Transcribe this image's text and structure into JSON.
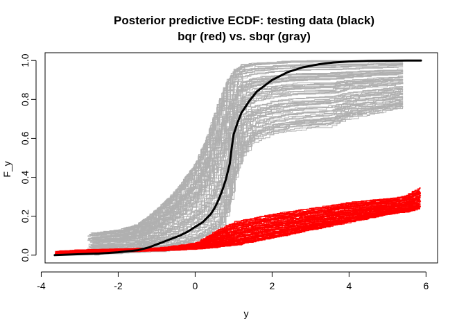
{
  "chart_data": {
    "type": "line",
    "title_line1": "Posterior predictive ECDF: testing data (black)",
    "title_line2": "bqr (red) vs. sbqr (gray)",
    "xlabel": "y",
    "ylabel": "F_y",
    "xlim": [
      -3.9,
      6.3
    ],
    "ylim": [
      -0.04,
      1.04
    ],
    "xticks": [
      -4,
      -2,
      0,
      2,
      4,
      6
    ],
    "yticks": [
      0.0,
      0.2,
      0.4,
      0.6,
      0.8,
      1.0
    ],
    "xtick_labels": [
      "-4",
      "-2",
      "0",
      "2",
      "4",
      "6"
    ],
    "ytick_labels": [
      "0.0",
      "0.2",
      "0.4",
      "0.6",
      "0.8",
      "1.0"
    ],
    "grid": false,
    "legend": "none",
    "colors": {
      "testing": "#000000",
      "bqr": "#ff0000",
      "sbqr": "#b0b0b0"
    },
    "series": [
      {
        "name": "testing data",
        "color": "#000000",
        "x": [
          -3.65,
          -3.0,
          -2.5,
          -2.0,
          -1.5,
          -1.2,
          -1.0,
          -0.8,
          -0.6,
          -0.4,
          -0.2,
          0.0,
          0.2,
          0.4,
          0.5,
          0.6,
          0.7,
          0.8,
          0.9,
          0.95,
          1.0,
          1.1,
          1.2,
          1.4,
          1.6,
          1.8,
          2.0,
          2.4,
          2.8,
          3.2,
          3.6,
          4.0,
          4.5,
          5.0,
          5.5,
          5.87
        ],
        "y": [
          0.0,
          0.005,
          0.008,
          0.015,
          0.025,
          0.04,
          0.055,
          0.07,
          0.085,
          0.1,
          0.12,
          0.145,
          0.17,
          0.21,
          0.24,
          0.28,
          0.33,
          0.39,
          0.47,
          0.55,
          0.62,
          0.68,
          0.73,
          0.79,
          0.84,
          0.87,
          0.9,
          0.94,
          0.965,
          0.98,
          0.99,
          0.995,
          0.998,
          0.999,
          1.0,
          1.0
        ]
      },
      {
        "name": "bqr",
        "color": "#ff0000",
        "n_draws": 80,
        "x": [
          -3.65,
          -3.0,
          -2.0,
          -1.0,
          0.0,
          0.5,
          1.0,
          2.0,
          3.0,
          4.0,
          4.5,
          5.0,
          5.4,
          5.87
        ],
        "y_low": [
          0.005,
          0.01,
          0.015,
          0.02,
          0.03,
          0.04,
          0.05,
          0.09,
          0.13,
          0.17,
          0.19,
          0.21,
          0.22,
          0.24
        ],
        "y_high": [
          0.018,
          0.025,
          0.03,
          0.035,
          0.06,
          0.12,
          0.17,
          0.21,
          0.24,
          0.27,
          0.28,
          0.29,
          0.3,
          0.35
        ]
      },
      {
        "name": "sbqr",
        "color": "#b0b0b0",
        "n_draws": 100,
        "x": [
          -2.8,
          -2.0,
          -1.5,
          -1.0,
          -0.5,
          0.0,
          0.3,
          0.6,
          0.8,
          1.0,
          1.2,
          1.5,
          2.0,
          2.5,
          3.0,
          3.5,
          4.0,
          4.5,
          5.0,
          5.4
        ],
        "y_low": [
          0.0,
          0.005,
          0.01,
          0.015,
          0.025,
          0.04,
          0.06,
          0.1,
          0.2,
          0.38,
          0.5,
          0.58,
          0.62,
          0.64,
          0.65,
          0.66,
          0.7,
          0.72,
          0.74,
          0.76
        ],
        "y_high": [
          0.11,
          0.13,
          0.16,
          0.24,
          0.34,
          0.48,
          0.62,
          0.8,
          0.9,
          0.96,
          0.985,
          0.99,
          0.995,
          1.0,
          1.0,
          1.0,
          1.0,
          1.0,
          1.0,
          1.0
        ]
      }
    ]
  }
}
